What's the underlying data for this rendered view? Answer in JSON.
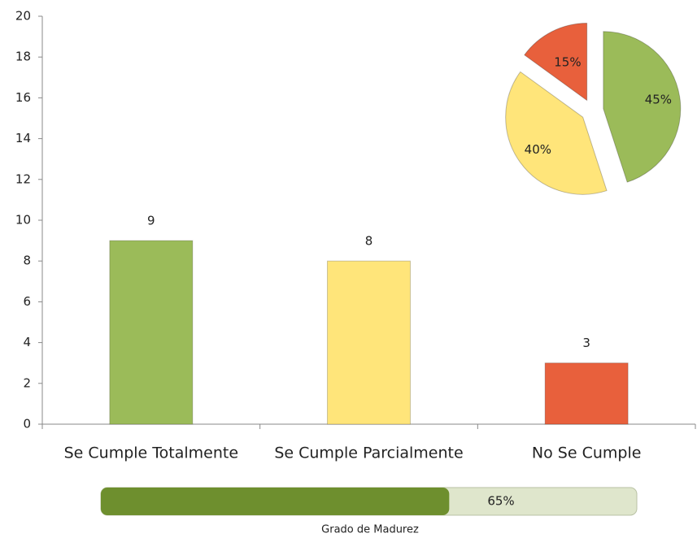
{
  "chart_data": [
    {
      "type": "bar",
      "categories": [
        "Se Cumple Totalmente",
        "Se Cumple Parcialmente",
        "No Se Cumple"
      ],
      "values": [
        9,
        8,
        3
      ],
      "colors": [
        "#9bbb59",
        "#ffe57a",
        "#e8603c"
      ],
      "ylim": [
        0,
        20
      ],
      "yticks": [
        0,
        2,
        4,
        6,
        8,
        10,
        12,
        14,
        16,
        18,
        20
      ],
      "grid": false
    },
    {
      "type": "pie",
      "values": [
        45,
        40,
        15
      ],
      "value_labels": [
        "45%",
        "40%",
        "15%"
      ],
      "colors": [
        "#9bbb59",
        "#ffe57a",
        "#e8603c"
      ]
    },
    {
      "type": "progress",
      "values": [
        65
      ],
      "value_labels": [
        "65%"
      ],
      "label": "Grado de Madurez",
      "xlim": [
        0,
        100
      ],
      "color": "#6e8f2e"
    }
  ]
}
